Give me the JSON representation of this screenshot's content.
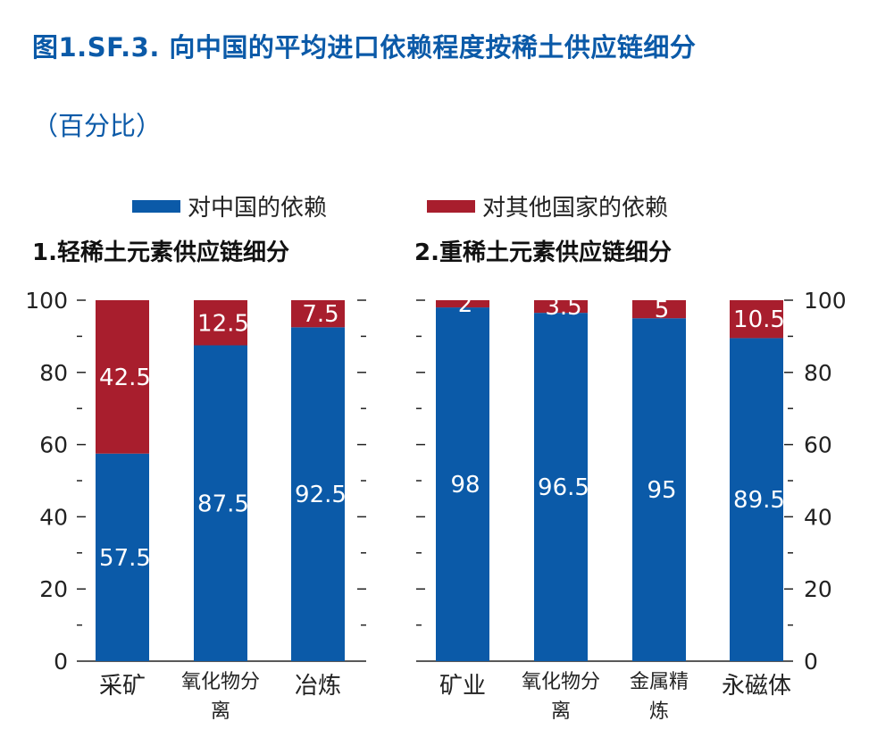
{
  "title": "图1.SF.3. 向中国的平均进口依赖程度按稀土供应链细分",
  "subtitle": "（百分比）",
  "legend": [
    {
      "label": "对中国的依赖",
      "color": "#0b5aa8"
    },
    {
      "label": "对其他国家的依赖",
      "color": "#a81e2d"
    }
  ],
  "chart_data": [
    {
      "type": "bar",
      "stacked": true,
      "title": "1.轻稀土元素供应链细分",
      "categories": [
        "采矿",
        "氧化物分离",
        "冶炼"
      ],
      "series": [
        {
          "name": "对中国的依赖",
          "values": [
            57.5,
            87.5,
            92.5
          ],
          "color": "#0b5aa8"
        },
        {
          "name": "对其他国家的依赖",
          "values": [
            42.5,
            12.5,
            7.5
          ],
          "color": "#a81e2d"
        }
      ],
      "ylim": [
        0,
        100
      ],
      "yticks": [
        "0",
        "20",
        "40",
        "60",
        "80",
        "100"
      ],
      "y_axis_side": "left",
      "grid": false
    },
    {
      "type": "bar",
      "stacked": true,
      "title": "2.重稀土元素供应链细分",
      "categories": [
        "矿业",
        "氧化物分离",
        "金属精炼",
        "永磁体"
      ],
      "series": [
        {
          "name": "对中国的依赖",
          "values": [
            98,
            96.5,
            95,
            89.5
          ],
          "color": "#0b5aa8"
        },
        {
          "name": "对其他国家的依赖",
          "values": [
            2,
            3.5,
            5,
            10.5
          ],
          "color": "#a81e2d"
        }
      ],
      "ylim": [
        0,
        100
      ],
      "yticks": [
        "0",
        "20",
        "40",
        "60",
        "80",
        "100"
      ],
      "y_axis_side": "right",
      "grid": false
    }
  ]
}
